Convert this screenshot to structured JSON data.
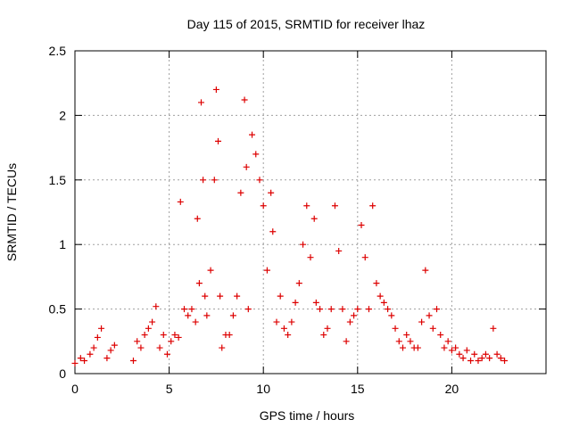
{
  "chart_data": {
    "type": "scatter",
    "title": "Day 115 of 2015, SRMTID for receiver lhaz",
    "xlabel": "GPS time / hours",
    "ylabel": "SRMTID / TECUs",
    "xlim": [
      0,
      25
    ],
    "ylim": [
      0,
      2.5
    ],
    "x_ticks": [
      "0",
      "5",
      "10",
      "15",
      "20"
    ],
    "y_ticks": [
      "0",
      "0.5",
      "1",
      "1.5",
      "2",
      "2.5"
    ],
    "grid": true,
    "marker": "+",
    "color": "#dd0000",
    "series": [
      {
        "name": "SRMTID",
        "x": [
          0.0,
          0.3,
          0.5,
          0.8,
          1.0,
          1.2,
          1.4,
          1.7,
          1.9,
          2.1,
          3.1,
          3.3,
          3.5,
          3.7,
          3.9,
          4.1,
          4.3,
          4.5,
          4.7,
          4.9,
          5.1,
          5.3,
          5.5,
          5.6,
          5.8,
          6.0,
          6.2,
          6.4,
          6.5,
          6.6,
          6.7,
          6.8,
          6.9,
          7.0,
          7.2,
          7.4,
          7.5,
          7.6,
          7.7,
          7.8,
          8.0,
          8.2,
          8.4,
          8.6,
          8.8,
          9.0,
          9.1,
          9.2,
          9.4,
          9.6,
          9.8,
          10.0,
          10.2,
          10.4,
          10.5,
          10.7,
          10.9,
          11.1,
          11.3,
          11.5,
          11.7,
          11.9,
          12.1,
          12.3,
          12.5,
          12.7,
          12.8,
          13.0,
          13.2,
          13.4,
          13.6,
          13.8,
          14.0,
          14.2,
          14.4,
          14.6,
          14.8,
          15.0,
          15.2,
          15.4,
          15.6,
          15.8,
          16.0,
          16.2,
          16.4,
          16.6,
          16.8,
          17.0,
          17.2,
          17.4,
          17.6,
          17.8,
          18.0,
          18.2,
          18.4,
          18.6,
          18.8,
          19.0,
          19.2,
          19.4,
          19.6,
          19.8,
          20.0,
          20.2,
          20.4,
          20.6,
          20.8,
          21.0,
          21.2,
          21.4,
          21.6,
          21.8,
          22.0,
          22.2,
          22.4,
          22.6,
          22.8
        ],
        "y": [
          0.08,
          0.12,
          0.1,
          0.15,
          0.2,
          0.28,
          0.35,
          0.12,
          0.18,
          0.22,
          0.1,
          0.25,
          0.2,
          0.3,
          0.35,
          0.4,
          0.52,
          0.2,
          0.3,
          0.15,
          0.25,
          0.3,
          0.28,
          1.33,
          0.5,
          0.45,
          0.5,
          0.4,
          1.2,
          0.7,
          2.1,
          1.5,
          0.6,
          0.45,
          0.8,
          1.5,
          2.2,
          1.8,
          0.6,
          0.2,
          0.3,
          0.3,
          0.45,
          0.6,
          1.4,
          2.12,
          1.6,
          0.5,
          1.85,
          1.7,
          1.5,
          1.3,
          0.8,
          1.4,
          1.1,
          0.4,
          0.6,
          0.35,
          0.3,
          0.4,
          0.55,
          0.7,
          1.0,
          1.3,
          0.9,
          1.2,
          0.55,
          0.5,
          0.3,
          0.35,
          0.5,
          1.3,
          0.95,
          0.5,
          0.25,
          0.4,
          0.45,
          0.5,
          1.15,
          0.9,
          0.5,
          1.3,
          0.7,
          0.6,
          0.55,
          0.5,
          0.45,
          0.35,
          0.25,
          0.2,
          0.3,
          0.25,
          0.2,
          0.2,
          0.4,
          0.8,
          0.45,
          0.35,
          0.5,
          0.3,
          0.2,
          0.25,
          0.18,
          0.2,
          0.15,
          0.12,
          0.18,
          0.1,
          0.15,
          0.1,
          0.12,
          0.15,
          0.12,
          0.35,
          0.15,
          0.12,
          0.1
        ]
      }
    ]
  }
}
